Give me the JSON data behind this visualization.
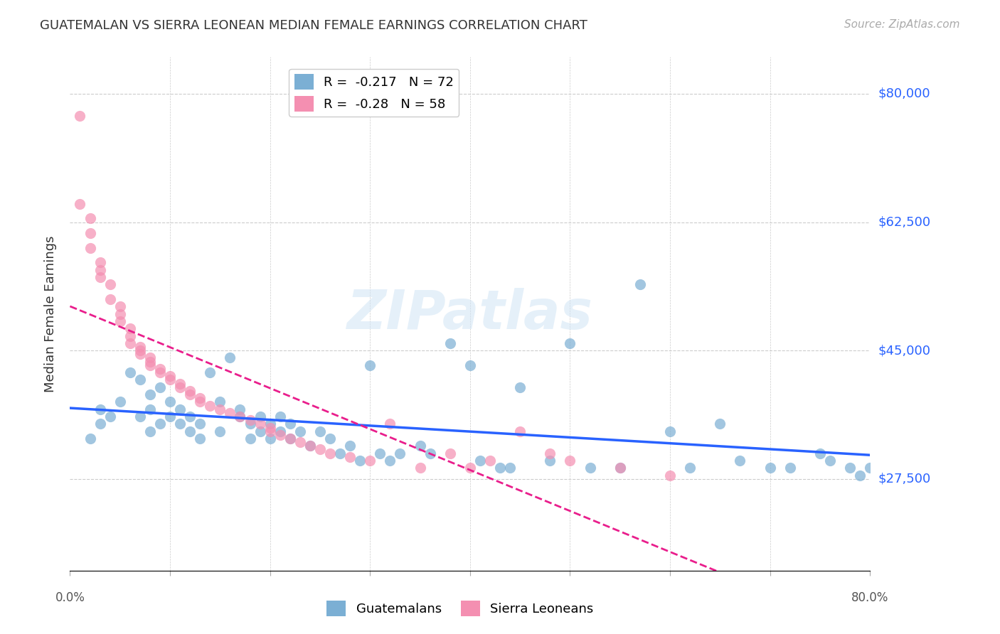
{
  "title": "GUATEMALAN VS SIERRA LEONEAN MEDIAN FEMALE EARNINGS CORRELATION CHART",
  "source": "Source: ZipAtlas.com",
  "ylabel": "Median Female Earnings",
  "yticks": [
    27500,
    45000,
    62500,
    80000
  ],
  "ytick_labels": [
    "$27,500",
    "$45,000",
    "$62,500",
    "$80,000"
  ],
  "xlim": [
    0.0,
    0.8
  ],
  "ylim": [
    15000,
    85000
  ],
  "blue_color": "#7bafd4",
  "pink_color": "#f48fb1",
  "blue_line_color": "#2962ff",
  "pink_line_color": "#e91e8c",
  "R_blue": -0.217,
  "N_blue": 72,
  "R_pink": -0.28,
  "N_pink": 58,
  "background_color": "#ffffff",
  "grid_color": "#cccccc",
  "guatemalan_x": [
    0.02,
    0.03,
    0.03,
    0.04,
    0.05,
    0.06,
    0.07,
    0.07,
    0.08,
    0.08,
    0.08,
    0.09,
    0.09,
    0.1,
    0.1,
    0.11,
    0.11,
    0.12,
    0.12,
    0.13,
    0.13,
    0.14,
    0.15,
    0.15,
    0.16,
    0.17,
    0.17,
    0.18,
    0.18,
    0.19,
    0.19,
    0.2,
    0.2,
    0.21,
    0.21,
    0.22,
    0.22,
    0.23,
    0.24,
    0.25,
    0.26,
    0.27,
    0.28,
    0.29,
    0.3,
    0.31,
    0.32,
    0.33,
    0.35,
    0.36,
    0.38,
    0.4,
    0.41,
    0.43,
    0.44,
    0.45,
    0.48,
    0.5,
    0.52,
    0.55,
    0.57,
    0.6,
    0.62,
    0.65,
    0.67,
    0.7,
    0.72,
    0.75,
    0.76,
    0.78,
    0.79,
    0.8
  ],
  "guatemalan_y": [
    33000,
    37000,
    35000,
    36000,
    38000,
    42000,
    41000,
    36000,
    39000,
    34000,
    37000,
    35000,
    40000,
    36000,
    38000,
    35000,
    37000,
    34000,
    36000,
    33000,
    35000,
    42000,
    38000,
    34000,
    44000,
    36000,
    37000,
    35000,
    33000,
    34000,
    36000,
    33000,
    35000,
    36000,
    34000,
    35000,
    33000,
    34000,
    32000,
    34000,
    33000,
    31000,
    32000,
    30000,
    43000,
    31000,
    30000,
    31000,
    32000,
    31000,
    46000,
    43000,
    30000,
    29000,
    29000,
    40000,
    30000,
    46000,
    29000,
    29000,
    54000,
    34000,
    29000,
    35000,
    30000,
    29000,
    29000,
    31000,
    30000,
    29000,
    28000,
    29000
  ],
  "sierraleone_x": [
    0.01,
    0.01,
    0.02,
    0.02,
    0.02,
    0.03,
    0.03,
    0.03,
    0.04,
    0.04,
    0.05,
    0.05,
    0.05,
    0.06,
    0.06,
    0.06,
    0.07,
    0.07,
    0.07,
    0.08,
    0.08,
    0.08,
    0.09,
    0.09,
    0.1,
    0.1,
    0.11,
    0.11,
    0.12,
    0.12,
    0.13,
    0.13,
    0.14,
    0.15,
    0.16,
    0.17,
    0.18,
    0.19,
    0.2,
    0.2,
    0.21,
    0.22,
    0.23,
    0.24,
    0.25,
    0.26,
    0.28,
    0.3,
    0.32,
    0.35,
    0.38,
    0.4,
    0.42,
    0.45,
    0.48,
    0.5,
    0.55,
    0.6
  ],
  "sierraleone_y": [
    77000,
    65000,
    63000,
    61000,
    59000,
    57000,
    56000,
    55000,
    54000,
    52000,
    51000,
    50000,
    49000,
    48000,
    47000,
    46000,
    45500,
    45000,
    44500,
    44000,
    43500,
    43000,
    42500,
    42000,
    41500,
    41000,
    40500,
    40000,
    39500,
    39000,
    38500,
    38000,
    37500,
    37000,
    36500,
    36000,
    35500,
    35000,
    34500,
    34000,
    33500,
    33000,
    32500,
    32000,
    31500,
    31000,
    30500,
    30000,
    35000,
    29000,
    31000,
    29000,
    30000,
    34000,
    31000,
    30000,
    29000,
    28000
  ]
}
